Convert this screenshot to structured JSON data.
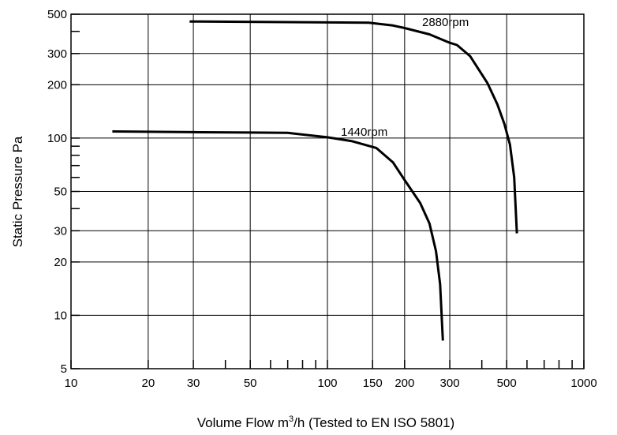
{
  "chart_data": {
    "type": "line",
    "x_scale": "log",
    "y_scale": "log",
    "xlim": [
      10,
      1000
    ],
    "ylim": [
      5,
      500
    ],
    "grid": true,
    "xlabel_parts": [
      "Volume Flow m",
      "3",
      "/h (Tested to EN ISO 5801)"
    ],
    "ylabel": "Static Pressure Pa",
    "x_ticks": [
      {
        "value": 10,
        "label": "10"
      },
      {
        "value": 20,
        "label": "20"
      },
      {
        "value": 30,
        "label": "30"
      },
      {
        "value": 50,
        "label": "50"
      },
      {
        "value": 100,
        "label": "100"
      },
      {
        "value": 150,
        "label": "150"
      },
      {
        "value": 200,
        "label": "200"
      },
      {
        "value": 300,
        "label": "300"
      },
      {
        "value": 500,
        "label": "500"
      },
      {
        "value": 1000,
        "label": "1000"
      }
    ],
    "x_gridlines": [
      20,
      30,
      50,
      100,
      150,
      200,
      300,
      500
    ],
    "x_minor_ticks": [
      40,
      60,
      70,
      80,
      90,
      400,
      600,
      700,
      800,
      900
    ],
    "y_ticks": [
      {
        "value": 5,
        "label": "5"
      },
      {
        "value": 10,
        "label": "10"
      },
      {
        "value": 20,
        "label": "20"
      },
      {
        "value": 30,
        "label": "30"
      },
      {
        "value": 50,
        "label": "50"
      },
      {
        "value": 100,
        "label": "100"
      },
      {
        "value": 200,
        "label": "200"
      },
      {
        "value": 300,
        "label": "300"
      },
      {
        "value": 500,
        "label": "500"
      }
    ],
    "y_gridlines": [
      10,
      20,
      30,
      50,
      100,
      200,
      300
    ],
    "y_minor_ticks": [
      40,
      60,
      70,
      80,
      90,
      400
    ],
    "series": [
      {
        "name": "2880rpm",
        "points": [
          [
            29,
            455
          ],
          [
            90,
            450
          ],
          [
            145,
            448
          ],
          [
            180,
            432
          ],
          [
            200,
            418
          ],
          [
            250,
            385
          ],
          [
            300,
            345
          ],
          [
            320,
            335
          ],
          [
            360,
            290
          ],
          [
            420,
            205
          ],
          [
            460,
            155
          ],
          [
            490,
            120
          ],
          [
            515,
            92
          ],
          [
            535,
            60
          ],
          [
            548,
            29
          ]
        ]
      },
      {
        "name": "1440rpm",
        "points": [
          [
            14.5,
            109
          ],
          [
            30,
            108
          ],
          [
            50,
            107.5
          ],
          [
            70,
            107
          ],
          [
            100,
            101
          ],
          [
            125,
            96
          ],
          [
            155,
            88
          ],
          [
            180,
            73
          ],
          [
            200,
            58
          ],
          [
            230,
            43
          ],
          [
            250,
            33
          ],
          [
            265,
            23
          ],
          [
            275,
            15
          ],
          [
            282,
            7.2
          ]
        ]
      }
    ]
  }
}
